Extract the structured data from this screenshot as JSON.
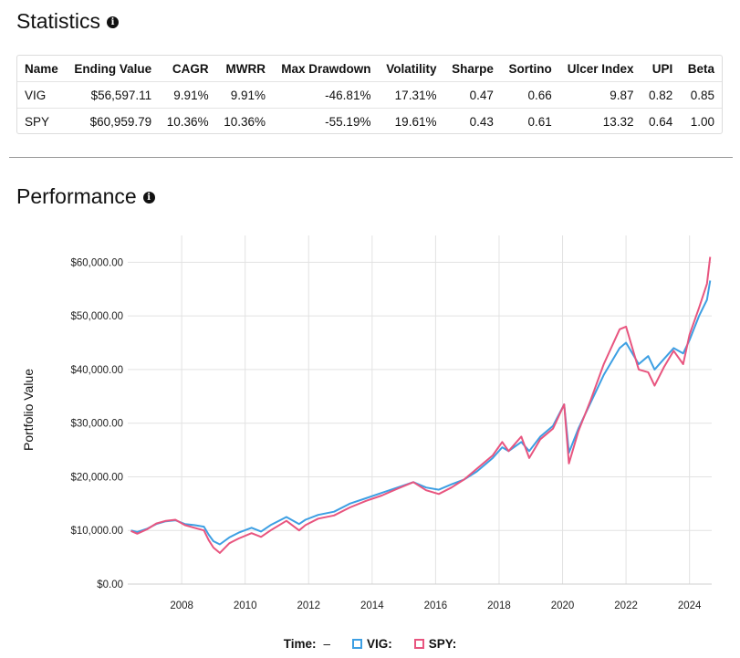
{
  "statistics": {
    "title": "Statistics",
    "info_icon": "info-icon",
    "columns": [
      "Name",
      "Ending Value",
      "CAGR",
      "MWRR",
      "Max Drawdown",
      "Volatility",
      "Sharpe",
      "Sortino",
      "Ulcer Index",
      "UPI",
      "Beta"
    ],
    "rows": [
      [
        "VIG",
        "$56,597.11",
        "9.91%",
        "9.91%",
        "-46.81%",
        "17.31%",
        "0.47",
        "0.66",
        "9.87",
        "0.82",
        "0.85"
      ],
      [
        "SPY",
        "$60,959.79",
        "10.36%",
        "10.36%",
        "-55.19%",
        "19.61%",
        "0.43",
        "0.61",
        "13.32",
        "0.64",
        "1.00"
      ]
    ]
  },
  "performance": {
    "title": "Performance",
    "info_icon": "info-icon"
  },
  "legend": {
    "time_label": "Time:",
    "time_value": "–",
    "items": [
      {
        "label": "VIG:",
        "color": "#3d9fe3"
      },
      {
        "label": "SPY:",
        "color": "#e8557f"
      }
    ]
  },
  "chart_data": {
    "type": "line",
    "title": "",
    "xlabel": "",
    "ylabel": "Portfolio Value",
    "xlim": [
      2006.3,
      2024.7
    ],
    "ylim": [
      0,
      65000
    ],
    "x_ticks": [
      2008,
      2010,
      2012,
      2014,
      2016,
      2018,
      2020,
      2022,
      2024
    ],
    "y_ticks": [
      0,
      10000,
      20000,
      30000,
      40000,
      50000,
      60000
    ],
    "y_tick_labels": [
      "$0.00",
      "$10,000.00",
      "$20,000.00",
      "$30,000.00",
      "$40,000.00",
      "$50,000.00",
      "$60,000.00"
    ],
    "grid": "vertical",
    "legend_position": "bottom",
    "series": [
      {
        "name": "VIG",
        "color": "#3d9fe3",
        "x": [
          2006.4,
          2006.6,
          2006.9,
          2007.2,
          2007.5,
          2007.8,
          2008.1,
          2008.4,
          2008.7,
          2008.85,
          2009.0,
          2009.2,
          2009.5,
          2009.8,
          2010.2,
          2010.5,
          2010.8,
          2011.3,
          2011.7,
          2011.9,
          2012.3,
          2012.8,
          2013.3,
          2013.8,
          2014.3,
          2014.8,
          2015.3,
          2015.7,
          2016.1,
          2016.5,
          2016.9,
          2017.3,
          2017.8,
          2018.1,
          2018.3,
          2018.7,
          2018.95,
          2019.3,
          2019.7,
          2020.05,
          2020.2,
          2020.5,
          2020.9,
          2021.3,
          2021.8,
          2022.0,
          2022.4,
          2022.7,
          2022.9,
          2023.2,
          2023.5,
          2023.8,
          2024.0,
          2024.3,
          2024.55,
          2024.65
        ],
        "y": [
          10000,
          9700,
          10300,
          11200,
          11700,
          11900,
          11200,
          11000,
          10700,
          9200,
          8000,
          7400,
          8700,
          9600,
          10500,
          9800,
          11000,
          12500,
          11200,
          12000,
          12900,
          13500,
          15000,
          16000,
          17000,
          18000,
          19000,
          18000,
          17600,
          18600,
          19500,
          21000,
          23500,
          25500,
          24800,
          26500,
          24800,
          27500,
          29500,
          33500,
          24500,
          29000,
          34000,
          39000,
          44000,
          45000,
          41000,
          42500,
          40000,
          42000,
          44000,
          43000,
          45500,
          50000,
          53000,
          56600
        ]
      },
      {
        "name": "SPY",
        "color": "#e8557f",
        "x": [
          2006.4,
          2006.6,
          2006.9,
          2007.2,
          2007.5,
          2007.8,
          2008.1,
          2008.4,
          2008.7,
          2008.85,
          2009.0,
          2009.2,
          2009.5,
          2009.8,
          2010.2,
          2010.5,
          2010.8,
          2011.3,
          2011.7,
          2011.9,
          2012.3,
          2012.8,
          2013.3,
          2013.8,
          2014.3,
          2014.8,
          2015.3,
          2015.7,
          2016.1,
          2016.5,
          2016.9,
          2017.3,
          2017.8,
          2018.1,
          2018.3,
          2018.7,
          2018.95,
          2019.3,
          2019.7,
          2020.05,
          2020.2,
          2020.5,
          2020.9,
          2021.3,
          2021.8,
          2022.0,
          2022.4,
          2022.7,
          2022.9,
          2023.2,
          2023.5,
          2023.8,
          2024.0,
          2024.3,
          2024.55,
          2024.65
        ],
        "y": [
          9900,
          9400,
          10200,
          11300,
          11800,
          12000,
          11000,
          10500,
          10000,
          8200,
          6800,
          5800,
          7600,
          8500,
          9500,
          8800,
          10000,
          11800,
          10000,
          11000,
          12200,
          12800,
          14300,
          15500,
          16500,
          17800,
          19000,
          17500,
          16800,
          18000,
          19500,
          21500,
          24000,
          26500,
          24800,
          27500,
          23500,
          27000,
          29000,
          33500,
          22500,
          28500,
          34500,
          41000,
          47500,
          48000,
          40000,
          39500,
          37000,
          40500,
          43500,
          41000,
          46500,
          51500,
          56000,
          61000
        ]
      }
    ]
  }
}
